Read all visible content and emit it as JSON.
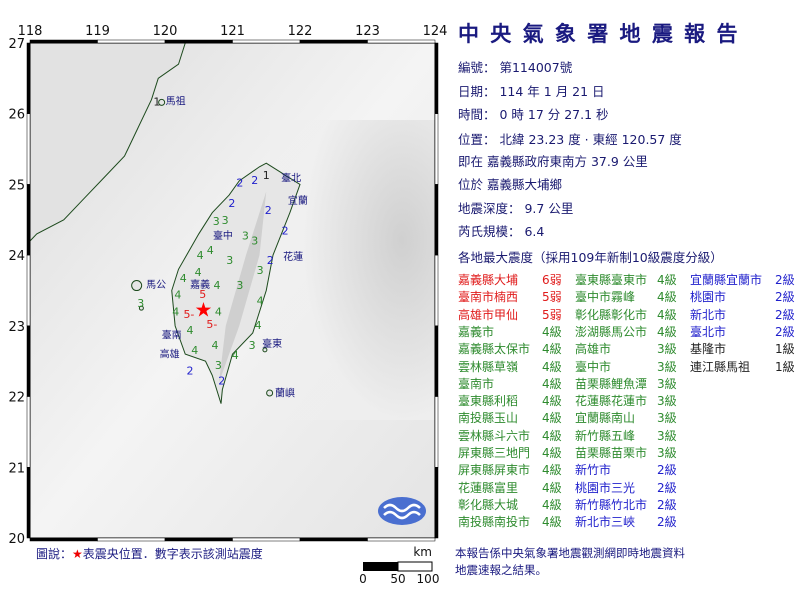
{
  "report": {
    "title": "中 央 氣 象 署 地 震 報 告",
    "number": "編號：  第114007號",
    "date": "日期：  114  年  1  月  21  日",
    "time": "時間：  0  時  17  分  27.1  秒",
    "location": "位置：  北緯  23.23  度 · 東經  120.57  度",
    "relative": "即在  嘉義縣政府東南方  37.9  公里",
    "area": "位於  嘉義縣大埔鄉",
    "depth": "地震深度：  9.7  公里",
    "magnitude": "芮氏規模：  6.4",
    "intensity_header": "各地最大震度（採用109年新制10級震度分級）"
  },
  "colors": {
    "level6": "#e01b1b",
    "level5": "#e01b1b",
    "level4": "#2e8b2e",
    "level3": "#2e8b2e",
    "level2": "#1f1fcc",
    "level1": "#222222",
    "epicenter": "#ff0000",
    "text": "#1a1a80"
  },
  "intensity_columns": [
    [
      {
        "place": "嘉義縣大埔",
        "level": "6弱",
        "c": "level6"
      },
      {
        "place": "臺南市楠西",
        "level": "5弱",
        "c": "level5"
      },
      {
        "place": "高雄市甲仙",
        "level": "5弱",
        "c": "level5"
      },
      {
        "place": "嘉義市",
        "level": "4級",
        "c": "level4"
      },
      {
        "place": "嘉義縣太保市",
        "level": "4級",
        "c": "level4"
      },
      {
        "place": "雲林縣草嶺",
        "level": "4級",
        "c": "level4"
      },
      {
        "place": "臺南市",
        "level": "4級",
        "c": "level4"
      },
      {
        "place": "臺東縣利稻",
        "level": "4級",
        "c": "level4"
      },
      {
        "place": "南投縣玉山",
        "level": "4級",
        "c": "level4"
      },
      {
        "place": "雲林縣斗六市",
        "level": "4級",
        "c": "level4"
      },
      {
        "place": "屏東縣三地門",
        "level": "4級",
        "c": "level4"
      },
      {
        "place": "屏東縣屏東市",
        "level": "4級",
        "c": "level4"
      },
      {
        "place": "花蓮縣富里",
        "level": "4級",
        "c": "level4"
      },
      {
        "place": "彰化縣大城",
        "level": "4級",
        "c": "level4"
      },
      {
        "place": "南投縣南投市",
        "level": "4級",
        "c": "level4"
      }
    ],
    [
      {
        "place": "臺東縣臺東市",
        "level": "4級",
        "c": "level4"
      },
      {
        "place": "臺中市霧峰",
        "level": "4級",
        "c": "level4"
      },
      {
        "place": "彰化縣彰化市",
        "level": "4級",
        "c": "level4"
      },
      {
        "place": "澎湖縣馬公市",
        "level": "4級",
        "c": "level4"
      },
      {
        "place": "高雄市",
        "level": "3級",
        "c": "level3"
      },
      {
        "place": "臺中市",
        "level": "3級",
        "c": "level3"
      },
      {
        "place": "苗栗縣鯉魚潭",
        "level": "3級",
        "c": "level3"
      },
      {
        "place": "花蓮縣花蓮市",
        "level": "3級",
        "c": "level3"
      },
      {
        "place": "宜蘭縣南山",
        "level": "3級",
        "c": "level3"
      },
      {
        "place": "新竹縣五峰",
        "level": "3級",
        "c": "level3"
      },
      {
        "place": "苗栗縣苗栗市",
        "level": "3級",
        "c": "level3"
      },
      {
        "place": "新竹市",
        "level": "2級",
        "c": "level2"
      },
      {
        "place": "桃園市三光",
        "level": "2級",
        "c": "level2"
      },
      {
        "place": "新竹縣竹北市",
        "level": "2級",
        "c": "level2"
      },
      {
        "place": "新北市三峽",
        "level": "2級",
        "c": "level2"
      }
    ],
    [
      {
        "place": "宜蘭縣宜蘭市",
        "level": "2級",
        "c": "level2"
      },
      {
        "place": "桃園市",
        "level": "2級",
        "c": "level2"
      },
      {
        "place": "新北市",
        "level": "2級",
        "c": "level2"
      },
      {
        "place": "臺北市",
        "level": "2級",
        "c": "level2"
      },
      {
        "place": "基隆市",
        "level": "1級",
        "c": "level1"
      },
      {
        "place": "連江縣馬祖",
        "level": "1級",
        "c": "level1"
      }
    ]
  ],
  "map": {
    "lon_range": [
      118,
      124
    ],
    "lat_range": [
      20,
      27
    ],
    "lon_ticks": [
      "118",
      "119",
      "120",
      "121",
      "122",
      "123",
      "124"
    ],
    "lat_ticks": [
      "27",
      "26",
      "25",
      "24",
      "23",
      "22",
      "21",
      "20"
    ],
    "epicenter": {
      "lon": 120.57,
      "lat": 23.23
    },
    "place_names": [
      {
        "name": "馬祖",
        "lon": 120.01,
        "lat": 26.19
      },
      {
        "name": "馬公",
        "lon": 119.72,
        "lat": 23.59
      },
      {
        "name": "臺北",
        "lon": 121.72,
        "lat": 25.1
      },
      {
        "name": "宜蘭",
        "lon": 121.82,
        "lat": 24.78
      },
      {
        "name": "臺中",
        "lon": 120.74,
        "lat": 24.17
      },
      {
        "name": "花蓮",
        "lon": 121.75,
        "lat": 23.99
      },
      {
        "name": "嘉義",
        "lon": 120.55,
        "lat": 23.49
      },
      {
        "name": "臺南",
        "lon": 120.44,
        "lat": 22.98
      },
      {
        "name": "高雄",
        "lon": 120.41,
        "lat": 22.62
      },
      {
        "name": "臺東",
        "lon": 121.38,
        "lat": 22.76
      },
      {
        "name": "蘭嶼",
        "lon": 121.63,
        "lat": 22.06
      }
    ],
    "stations": [
      {
        "v": "5",
        "lon": 120.56,
        "lat": 23.41,
        "c": "level5"
      },
      {
        "v": "5-",
        "lon": 120.31,
        "lat": 23.17,
        "c": "level5"
      },
      {
        "v": "5-",
        "lon": 120.62,
        "lat": 23.07,
        "c": "level5"
      },
      {
        "v": "4",
        "lon": 120.27,
        "lat": 23.68,
        "c": "level4"
      },
      {
        "v": "4",
        "lon": 120.49,
        "lat": 23.76,
        "c": "level4"
      },
      {
        "v": "4",
        "lon": 120.19,
        "lat": 23.44,
        "c": "level4"
      },
      {
        "v": "4",
        "lon": 120.16,
        "lat": 23.2,
        "c": "level4"
      },
      {
        "v": "4",
        "lon": 120.37,
        "lat": 22.94,
        "c": "level4"
      },
      {
        "v": "4",
        "lon": 120.44,
        "lat": 22.66,
        "c": "level4"
      },
      {
        "v": "4",
        "lon": 120.74,
        "lat": 22.73,
        "c": "level4"
      },
      {
        "v": "4",
        "lon": 120.79,
        "lat": 23.2,
        "c": "level4"
      },
      {
        "v": "4",
        "lon": 120.77,
        "lat": 23.58,
        "c": "level4"
      },
      {
        "v": "4",
        "lon": 120.52,
        "lat": 24.0,
        "c": "level4"
      },
      {
        "v": "4",
        "lon": 120.67,
        "lat": 24.07,
        "c": "level4"
      },
      {
        "v": "4",
        "lon": 121.41,
        "lat": 23.36,
        "c": "level4"
      },
      {
        "v": "4",
        "lon": 121.38,
        "lat": 23.01,
        "c": "level4"
      },
      {
        "v": "4",
        "lon": 121.04,
        "lat": 22.59,
        "c": "level4"
      },
      {
        "v": "3",
        "lon": 121.11,
        "lat": 23.58,
        "c": "level3"
      },
      {
        "v": "3",
        "lon": 120.96,
        "lat": 23.93,
        "c": "level3"
      },
      {
        "v": "3",
        "lon": 120.89,
        "lat": 24.5,
        "c": "level3"
      },
      {
        "v": "3",
        "lon": 120.76,
        "lat": 24.48,
        "c": "level3"
      },
      {
        "v": "3",
        "lon": 121.19,
        "lat": 24.28,
        "c": "level3"
      },
      {
        "v": "3",
        "lon": 121.33,
        "lat": 24.21,
        "c": "level3"
      },
      {
        "v": "3",
        "lon": 121.41,
        "lat": 23.79,
        "c": "level3"
      },
      {
        "v": "3",
        "lon": 120.79,
        "lat": 22.45,
        "c": "level3"
      },
      {
        "v": "3",
        "lon": 121.29,
        "lat": 22.73,
        "c": "level3"
      },
      {
        "v": "3",
        "lon": 119.64,
        "lat": 23.32,
        "c": "level3"
      },
      {
        "v": "2",
        "lon": 121.11,
        "lat": 25.03,
        "c": "level2"
      },
      {
        "v": "2",
        "lon": 121.33,
        "lat": 25.06,
        "c": "level2"
      },
      {
        "v": "2",
        "lon": 120.99,
        "lat": 24.74,
        "c": "level2"
      },
      {
        "v": "2",
        "lon": 121.53,
        "lat": 24.64,
        "c": "level2"
      },
      {
        "v": "2",
        "lon": 121.78,
        "lat": 24.35,
        "c": "level2"
      },
      {
        "v": "2",
        "lon": 121.56,
        "lat": 23.93,
        "c": "level2"
      },
      {
        "v": "2",
        "lon": 120.37,
        "lat": 22.37,
        "c": "level2"
      },
      {
        "v": "2",
        "lon": 120.84,
        "lat": 22.23,
        "c": "level2"
      },
      {
        "v": "1",
        "lon": 121.5,
        "lat": 25.13,
        "c": "level1"
      },
      {
        "v": "1",
        "lon": 119.88,
        "lat": 26.17,
        "c": "level1"
      }
    ],
    "scale_unit": "km",
    "scale_ticks": [
      "0",
      "50",
      "100"
    ]
  },
  "legend": {
    "prefix": "圖說：",
    "star": "★",
    "text": "表震央位置．數字表示該測站震度"
  },
  "note": {
    "line1": "本報告係中央氣象署地震觀測網即時地震資料",
    "line2": "地震速報之結果。"
  },
  "logo": {
    "icon": "cwa-logo-waves"
  }
}
